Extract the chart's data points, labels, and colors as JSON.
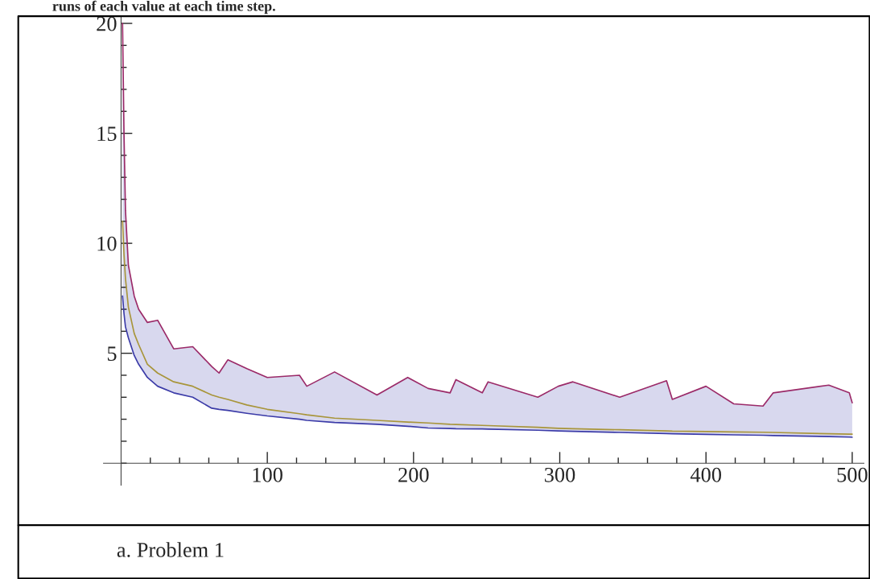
{
  "chart_data": {
    "type": "line",
    "title": "runs of each value at each time step.",
    "annotations": [
      "a. Problem 1"
    ],
    "x": [
      1,
      2,
      3,
      5,
      9,
      12,
      18,
      25,
      36,
      49,
      62,
      67,
      73,
      86,
      100,
      122,
      127,
      146,
      175,
      196,
      210,
      225,
      229,
      247,
      251,
      285,
      299,
      309,
      341,
      373,
      377,
      400,
      419,
      439,
      446,
      484,
      498,
      500
    ],
    "series": [
      {
        "color": "#9b2a68",
        "values": [
          20,
          15,
          11.5,
          9.0,
          7.6,
          7.0,
          6.4,
          6.5,
          5.2,
          5.3,
          4.4,
          4.1,
          4.7,
          4.3,
          3.9,
          4.0,
          3.5,
          4.15,
          3.1,
          3.9,
          3.4,
          3.2,
          3.8,
          3.2,
          3.7,
          3.0,
          3.5,
          3.7,
          3.0,
          3.75,
          2.9,
          3.5,
          2.7,
          2.6,
          3.2,
          3.55,
          3.2,
          2.75
        ]
      },
      {
        "color": "#3b3ba8",
        "values": [
          7.6,
          6.8,
          6.2,
          5.7,
          4.9,
          4.5,
          3.9,
          3.5,
          3.2,
          3.0,
          2.5,
          2.45,
          2.4,
          2.27,
          2.15,
          2.0,
          1.95,
          1.85,
          1.77,
          1.68,
          1.6,
          1.58,
          1.57,
          1.56,
          1.55,
          1.5,
          1.47,
          1.45,
          1.4,
          1.35,
          1.34,
          1.31,
          1.29,
          1.27,
          1.26,
          1.21,
          1.19,
          1.18
        ]
      },
      {
        "color": "#a8953a",
        "values": [
          11.0,
          9.5,
          8.4,
          7.1,
          5.9,
          5.4,
          4.5,
          4.1,
          3.7,
          3.5,
          3.1,
          3.0,
          2.9,
          2.65,
          2.45,
          2.25,
          2.2,
          2.05,
          1.95,
          1.87,
          1.83,
          1.77,
          1.76,
          1.72,
          1.71,
          1.63,
          1.59,
          1.57,
          1.52,
          1.47,
          1.46,
          1.44,
          1.42,
          1.41,
          1.4,
          1.34,
          1.32,
          1.32
        ],
        "lower": [
          7.6,
          6.8,
          6.2,
          5.7,
          4.9,
          4.5,
          3.9,
          3.5,
          3.2,
          3.0,
          2.5,
          2.45,
          2.4,
          2.27,
          2.15,
          2.0,
          1.95,
          1.85,
          1.77,
          1.68,
          1.6,
          1.58,
          1.57,
          1.56,
          1.55,
          1.5,
          1.47,
          1.45,
          1.4,
          1.35,
          1.34,
          1.31,
          1.29,
          1.27,
          1.26,
          1.21,
          1.19,
          1.18
        ],
        "upper": [
          20,
          15,
          11.5,
          9.0,
          7.6,
          7.0,
          6.4,
          6.5,
          5.2,
          5.3,
          4.4,
          4.1,
          4.7,
          4.3,
          3.9,
          4.0,
          3.5,
          4.15,
          3.1,
          3.9,
          3.4,
          3.2,
          3.8,
          3.2,
          3.7,
          3.0,
          3.5,
          3.7,
          3.0,
          3.75,
          2.9,
          3.5,
          2.7,
          2.6,
          3.2,
          3.55,
          3.2,
          2.75
        ]
      }
    ],
    "xlim": [
      -12,
      508
    ],
    "ylim": [
      -1,
      20.3
    ],
    "xticks": [
      {
        "value": 20,
        "label": null
      },
      {
        "value": 40,
        "label": null
      },
      {
        "value": 60,
        "label": null
      },
      {
        "value": 80,
        "label": null
      },
      100,
      {
        "value": 120,
        "label": null
      },
      {
        "value": 140,
        "label": null
      },
      {
        "value": 160,
        "label": null
      },
      {
        "value": 180,
        "label": null
      },
      200,
      {
        "value": 220,
        "label": null
      },
      {
        "value": 240,
        "label": null
      },
      {
        "value": 260,
        "label": null
      },
      {
        "value": 280,
        "label": null
      },
      300,
      {
        "value": 320,
        "label": null
      },
      {
        "value": 340,
        "label": null
      },
      {
        "value": 360,
        "label": null
      },
      {
        "value": 380,
        "label": null
      },
      400,
      {
        "value": 420,
        "label": null
      },
      {
        "value": 440,
        "label": null
      },
      {
        "value": 460,
        "label": null
      },
      {
        "value": 480,
        "label": null
      },
      500
    ],
    "yticks": [
      {
        "value": 0,
        "label": null
      },
      {
        "value": 1,
        "label": null
      },
      {
        "value": 2,
        "label": null
      },
      {
        "value": 3,
        "label": null
      },
      {
        "value": 4,
        "label": null
      },
      5,
      {
        "value": 6,
        "label": null
      },
      {
        "value": 7,
        "label": null
      },
      {
        "value": 8,
        "label": null
      },
      {
        "value": 9,
        "label": null
      },
      10,
      {
        "value": 11,
        "label": null
      },
      {
        "value": 12,
        "label": null
      },
      {
        "value": 13,
        "label": null
      },
      {
        "value": 14,
        "label": null
      },
      15,
      {
        "value": 16,
        "label": null
      },
      {
        "value": 17,
        "label": null
      },
      {
        "value": 18,
        "label": null
      },
      {
        "value": 19,
        "label": null
      },
      20
    ],
    "grid": false,
    "legend": false
  }
}
